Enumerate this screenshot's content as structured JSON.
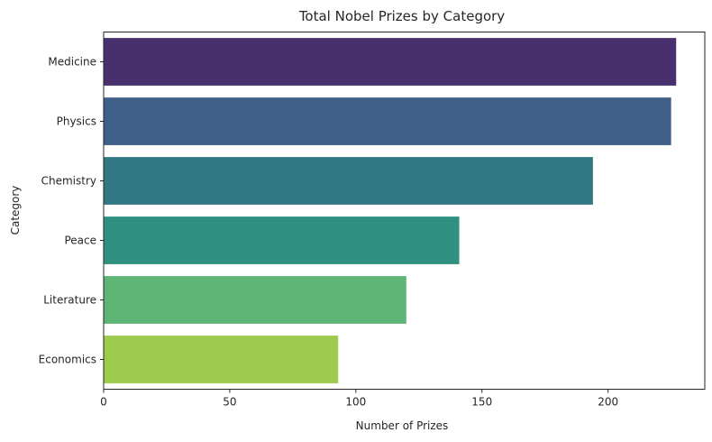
{
  "chart_data": {
    "type": "bar",
    "orientation": "horizontal",
    "title": "Total Nobel Prizes by Category",
    "xlabel": "Number of Prizes",
    "ylabel": "Category",
    "categories": [
      "Medicine",
      "Physics",
      "Chemistry",
      "Peace",
      "Literature",
      "Economics"
    ],
    "values": [
      227,
      225,
      194,
      141,
      120,
      93
    ],
    "colors": [
      "#48306f",
      "#3f5e88",
      "#327882",
      "#319180",
      "#5db576",
      "#9ccb4d"
    ],
    "xlim": [
      0,
      238.35
    ],
    "xticks": [
      0,
      50,
      100,
      150,
      200
    ],
    "grid": false,
    "legend": "none"
  }
}
